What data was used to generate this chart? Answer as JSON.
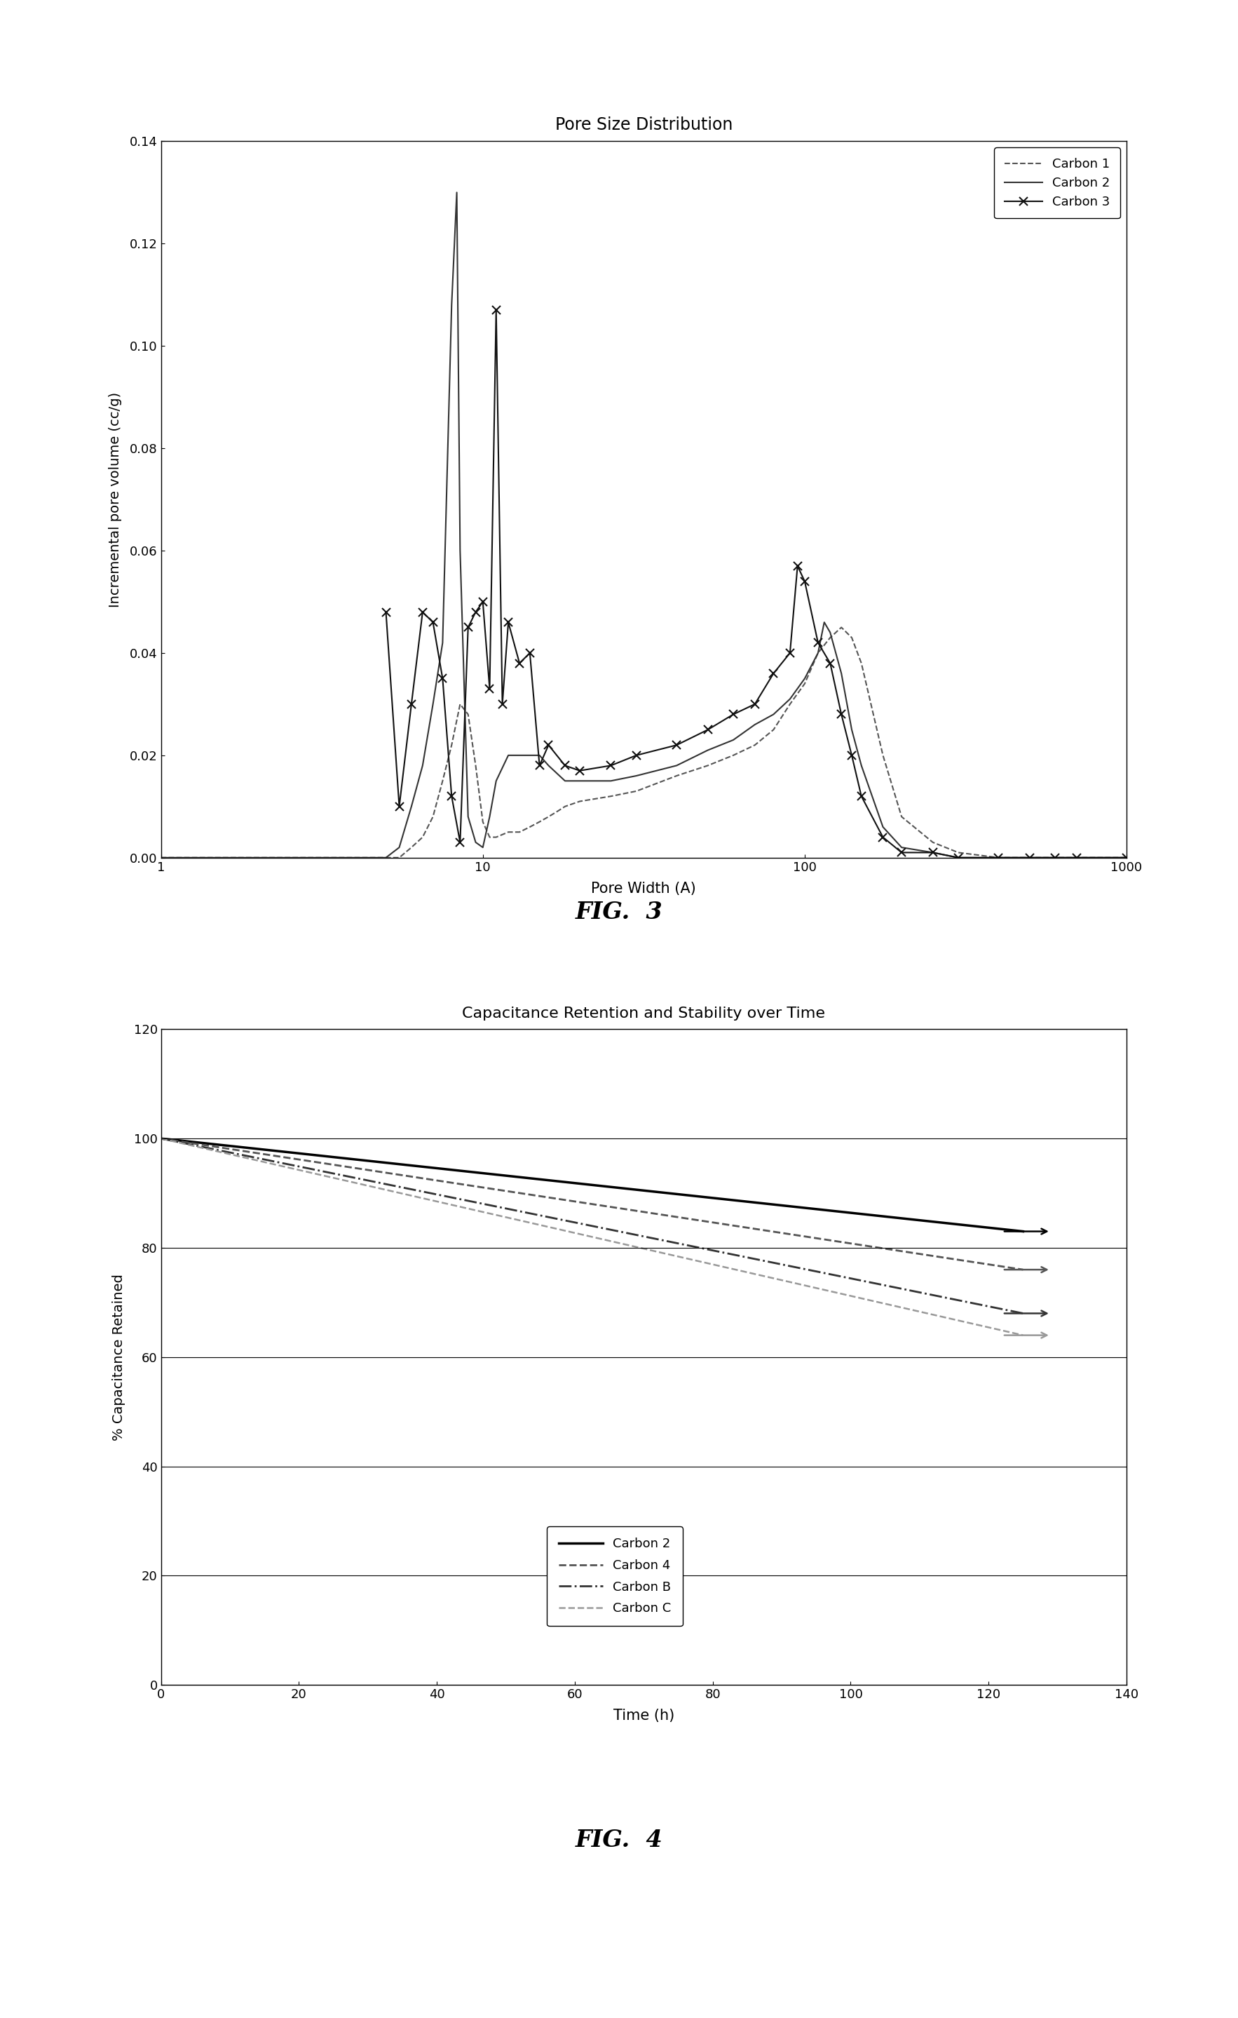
{
  "fig3": {
    "title": "Pore Size Distribution",
    "xlabel": "Pore Width (A)",
    "ylabel": "Incremental pore volume (cc/g)",
    "xlim": [
      1,
      1000
    ],
    "ylim": [
      0,
      0.14
    ],
    "yticks": [
      0,
      0.02,
      0.04,
      0.06,
      0.08,
      0.1,
      0.12,
      0.14
    ],
    "xtick_labels": [
      "1",
      "10",
      "100",
      "1000"
    ],
    "carbon1": {
      "label": "Carbon 1",
      "linestyle": "--",
      "color": "#555555",
      "linewidth": 1.5,
      "x": [
        1.0,
        4.0,
        5.0,
        5.5,
        6.0,
        6.5,
        7.0,
        7.5,
        8.0,
        8.5,
        9.0,
        9.5,
        10.0,
        10.5,
        11.0,
        12.0,
        13.0,
        14.0,
        15.0,
        16.0,
        17.0,
        18.0,
        20.0,
        25.0,
        30.0,
        40.0,
        50.0,
        60.0,
        70.0,
        80.0,
        90.0,
        100.0,
        110.0,
        120.0,
        130.0,
        140.0,
        150.0,
        175.0,
        200.0,
        250.0,
        300.0,
        400.0,
        500.0,
        1000.0
      ],
      "y": [
        0.0,
        0.0,
        0.0,
        0.0,
        0.002,
        0.004,
        0.008,
        0.015,
        0.022,
        0.03,
        0.028,
        0.018,
        0.007,
        0.004,
        0.004,
        0.005,
        0.005,
        0.006,
        0.007,
        0.008,
        0.009,
        0.01,
        0.011,
        0.012,
        0.013,
        0.016,
        0.018,
        0.02,
        0.022,
        0.025,
        0.03,
        0.034,
        0.04,
        0.043,
        0.045,
        0.043,
        0.038,
        0.02,
        0.008,
        0.003,
        0.001,
        0.0,
        0.0,
        0.0
      ]
    },
    "carbon2": {
      "label": "Carbon 2",
      "linestyle": "-",
      "color": "#333333",
      "linewidth": 1.5,
      "x": [
        1.0,
        4.0,
        5.0,
        5.5,
        6.0,
        6.5,
        7.0,
        7.5,
        8.0,
        8.3,
        8.5,
        9.0,
        9.5,
        10.0,
        10.5,
        11.0,
        12.0,
        13.0,
        14.0,
        15.0,
        16.0,
        18.0,
        20.0,
        25.0,
        30.0,
        40.0,
        50.0,
        60.0,
        70.0,
        80.0,
        90.0,
        100.0,
        110.0,
        115.0,
        120.0,
        130.0,
        140.0,
        150.0,
        175.0,
        200.0,
        250.0,
        300.0,
        400.0,
        500.0,
        1000.0
      ],
      "y": [
        0.0,
        0.0,
        0.0,
        0.002,
        0.01,
        0.018,
        0.03,
        0.042,
        0.108,
        0.13,
        0.06,
        0.008,
        0.003,
        0.002,
        0.008,
        0.015,
        0.02,
        0.02,
        0.02,
        0.02,
        0.018,
        0.015,
        0.015,
        0.015,
        0.016,
        0.018,
        0.021,
        0.023,
        0.026,
        0.028,
        0.031,
        0.035,
        0.04,
        0.046,
        0.044,
        0.036,
        0.025,
        0.018,
        0.006,
        0.002,
        0.001,
        0.0,
        0.0,
        0.0,
        0.0
      ]
    },
    "carbon3": {
      "label": "Carbon 3",
      "linestyle": "-",
      "color": "#111111",
      "linewidth": 1.5,
      "marker": "x",
      "markersize": 8,
      "markeredgewidth": 1.5,
      "x": [
        5.0,
        5.5,
        6.0,
        6.5,
        7.0,
        7.5,
        8.0,
        8.5,
        9.0,
        9.5,
        10.0,
        10.5,
        11.0,
        11.5,
        12.0,
        13.0,
        14.0,
        15.0,
        16.0,
        18.0,
        20.0,
        25.0,
        30.0,
        40.0,
        50.0,
        60.0,
        70.0,
        80.0,
        90.0,
        95.0,
        100.0,
        110.0,
        120.0,
        130.0,
        140.0,
        150.0,
        175.0,
        200.0,
        250.0,
        300.0,
        400.0,
        500.0,
        600.0,
        700.0,
        1000.0
      ],
      "y": [
        0.048,
        0.01,
        0.03,
        0.048,
        0.046,
        0.035,
        0.012,
        0.003,
        0.045,
        0.048,
        0.05,
        0.033,
        0.107,
        0.03,
        0.046,
        0.038,
        0.04,
        0.018,
        0.022,
        0.018,
        0.017,
        0.018,
        0.02,
        0.022,
        0.025,
        0.028,
        0.03,
        0.036,
        0.04,
        0.057,
        0.054,
        0.042,
        0.038,
        0.028,
        0.02,
        0.012,
        0.004,
        0.001,
        0.001,
        0.0,
        0.0,
        0.0,
        0.0,
        0.0,
        0.0
      ]
    }
  },
  "fig4": {
    "title": "Capacitance Retention and Stability over Time",
    "xlabel": "Time (h)",
    "ylabel": "% Capacitance Retained",
    "xlim": [
      0,
      140
    ],
    "ylim": [
      0,
      120
    ],
    "xticks": [
      0,
      20,
      40,
      60,
      80,
      100,
      120,
      140
    ],
    "yticks": [
      0,
      20,
      40,
      60,
      80,
      100,
      120
    ],
    "carbon2": {
      "label": "Carbon 2",
      "linestyle": "-",
      "color": "#000000",
      "linewidth": 2.5,
      "x": [
        0,
        125
      ],
      "y": [
        100,
        83
      ],
      "arrow_color": "#000000"
    },
    "carbon4": {
      "label": "Carbon 4",
      "linestyle": "--",
      "color": "#555555",
      "linewidth": 2.0,
      "x": [
        0,
        125
      ],
      "y": [
        100,
        76
      ],
      "arrow_color": "#555555"
    },
    "carbonB": {
      "label": "Carbon B",
      "linestyle": "-.",
      "color": "#333333",
      "linewidth": 2.0,
      "x": [
        0,
        125
      ],
      "y": [
        100,
        68
      ],
      "arrow_color": "#333333"
    },
    "carbonC": {
      "label": "Carbon C",
      "linestyle": "--",
      "color": "#999999",
      "linewidth": 1.8,
      "x": [
        0,
        125
      ],
      "y": [
        100,
        64
      ],
      "arrow_color": "#999999"
    }
  },
  "fig3_caption": "FIG.  3",
  "fig4_caption": "FIG.  4",
  "bg_color": "#ffffff"
}
